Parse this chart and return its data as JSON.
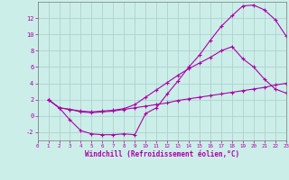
{
  "xlabel": "Windchill (Refroidissement éolien,°C)",
  "bg_color": "#cceee8",
  "grid_color": "#aacccc",
  "line_color": "#aa00aa",
  "line1_x": [
    1,
    2,
    3,
    4,
    5,
    6,
    7,
    8,
    9,
    10,
    11,
    12,
    13,
    14,
    15,
    16,
    17,
    18,
    19,
    20,
    21,
    22,
    23
  ],
  "line1_y": [
    2.0,
    1.0,
    -0.5,
    -1.8,
    -2.2,
    -2.3,
    -2.3,
    -2.2,
    -2.3,
    0.3,
    1.0,
    2.7,
    4.3,
    6.0,
    7.5,
    9.3,
    11.0,
    12.3,
    13.5,
    13.6,
    13.0,
    11.8,
    9.8
  ],
  "line2_x": [
    1,
    2,
    3,
    4,
    5,
    6,
    7,
    8,
    9,
    10,
    11,
    12,
    13,
    14,
    15,
    16,
    17,
    18,
    19,
    20,
    21,
    22,
    23
  ],
  "line2_y": [
    2.0,
    1.0,
    0.8,
    0.6,
    0.5,
    0.6,
    0.7,
    0.9,
    1.4,
    2.3,
    3.2,
    4.1,
    5.0,
    5.8,
    6.5,
    7.2,
    8.0,
    8.5,
    7.0,
    6.0,
    4.5,
    3.3,
    2.8
  ],
  "line3_x": [
    1,
    2,
    3,
    4,
    5,
    6,
    7,
    8,
    9,
    10,
    11,
    12,
    13,
    14,
    15,
    16,
    17,
    18,
    19,
    20,
    21,
    22,
    23
  ],
  "line3_y": [
    2.0,
    1.0,
    0.8,
    0.5,
    0.4,
    0.5,
    0.6,
    0.8,
    1.0,
    1.2,
    1.4,
    1.6,
    1.9,
    2.1,
    2.3,
    2.5,
    2.7,
    2.9,
    3.1,
    3.3,
    3.5,
    3.8,
    4.0
  ],
  "xlim": [
    0,
    23
  ],
  "ylim": [
    -3,
    14
  ],
  "yticks": [
    -2,
    0,
    2,
    4,
    6,
    8,
    10,
    12
  ],
  "xticks": [
    0,
    1,
    2,
    3,
    4,
    5,
    6,
    7,
    8,
    9,
    10,
    11,
    12,
    13,
    14,
    15,
    16,
    17,
    18,
    19,
    20,
    21,
    22,
    23
  ]
}
